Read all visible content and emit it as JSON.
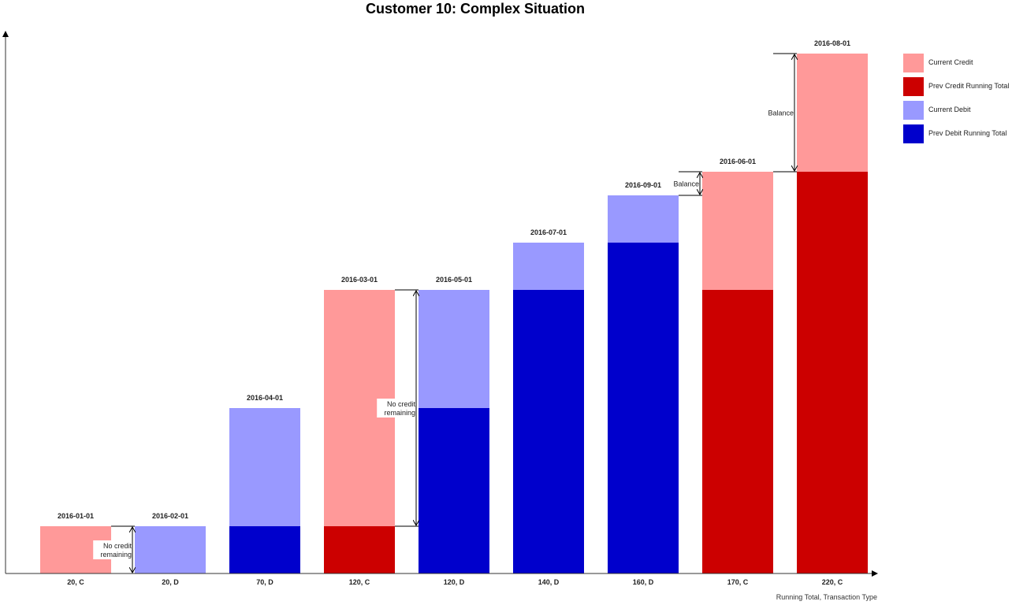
{
  "chart_data": {
    "type": "bar",
    "stacked": true,
    "title": "Customer 10: Complex Situation",
    "xlabel": "Running Total, Transaction Type",
    "ylabel": "",
    "ylim": [
      0,
      225
    ],
    "grid": false,
    "legend_position": "right",
    "categories": [
      "20, C",
      "20, D",
      "70, D",
      "120, C",
      "120, D",
      "140, D",
      "160, D",
      "170, C",
      "220, C"
    ],
    "dates": [
      "2016-01-01",
      "2016-02-01",
      "2016-04-01",
      "2016-03-01",
      "2016-05-01",
      "2016-07-01",
      "2016-09-01",
      "2016-06-01",
      "2016-08-01"
    ],
    "series": [
      {
        "name": "Prev Credit Running Total",
        "key": "prev_credit",
        "color": "#cc0000",
        "values": [
          0,
          0,
          0,
          20,
          0,
          0,
          0,
          120,
          170
        ]
      },
      {
        "name": "Current Credit",
        "key": "current_credit",
        "color": "#ff9999",
        "values": [
          20,
          0,
          0,
          100,
          0,
          0,
          0,
          50,
          50
        ]
      },
      {
        "name": "Prev Debit Running Total",
        "key": "prev_debit",
        "color": "#0000cc",
        "values": [
          0,
          0,
          20,
          0,
          70,
          120,
          140,
          0,
          0
        ]
      },
      {
        "name": "Current Debit",
        "key": "current_debit",
        "color": "#9999ff",
        "values": [
          0,
          20,
          50,
          0,
          50,
          20,
          20,
          0,
          0
        ]
      }
    ],
    "legend": [
      {
        "label": "Current Credit",
        "color": "#ff9999"
      },
      {
        "label": "Prev Credit Running Total",
        "color": "#cc0000"
      },
      {
        "label": "Current Debit",
        "color": "#9999ff"
      },
      {
        "label": "Prev Debit Running Total",
        "color": "#0000cc"
      }
    ],
    "annotations": [
      {
        "text_lines": [
          "No credit",
          "remaining"
        ],
        "between": [
          0,
          1
        ],
        "from": 0,
        "to": 20
      },
      {
        "text_lines": [
          "No credit",
          "remaining"
        ],
        "between": [
          3,
          4
        ],
        "from": 20,
        "to": 120
      },
      {
        "text_lines": [
          "Balance"
        ],
        "between": [
          6,
          7
        ],
        "from": 160,
        "to": 170
      },
      {
        "text_lines": [
          "Balance"
        ],
        "between": [
          7,
          8
        ],
        "from": 170,
        "to": 220
      }
    ]
  }
}
